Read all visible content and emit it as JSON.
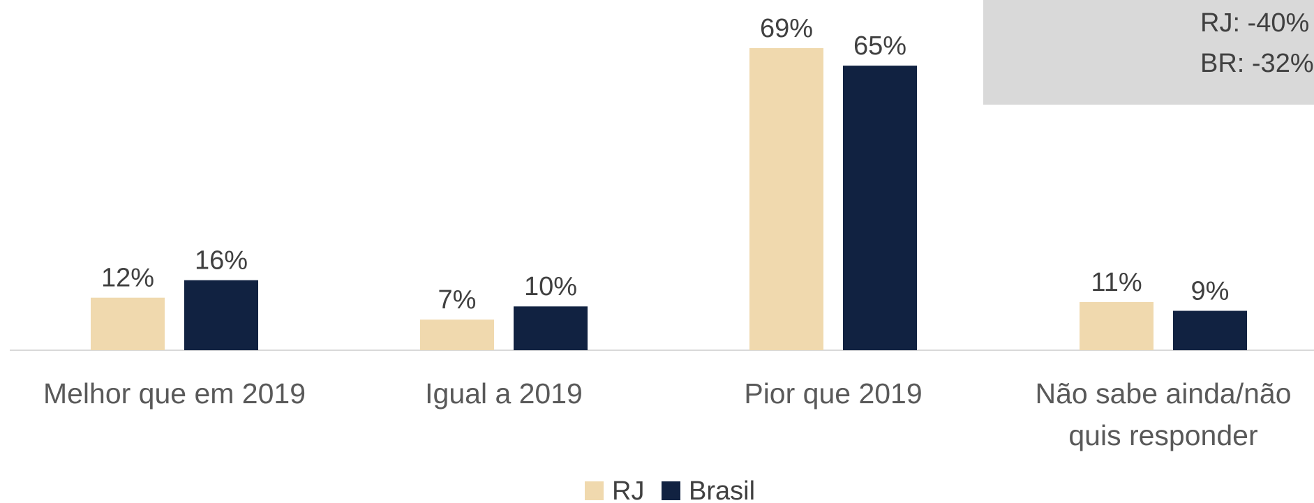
{
  "chart_data": {
    "type": "bar",
    "categories": [
      "Melhor que em 2019",
      "Igual a 2019",
      "Pior que 2019",
      "Não sabe ainda/não quis responder"
    ],
    "series": [
      {
        "name": "RJ",
        "color": "#f0d9ae",
        "values": [
          12,
          7,
          69,
          11
        ],
        "value_labels": [
          "12%",
          "7%",
          "69%",
          "11%"
        ]
      },
      {
        "name": "Brasil",
        "color": "#112241",
        "values": [
          16,
          10,
          65,
          9
        ],
        "value_labels": [
          "16%",
          "10%",
          "65%",
          "9%"
        ]
      }
    ],
    "annotations": [
      "RJ: -40%",
      "BR: -32%"
    ]
  }
}
